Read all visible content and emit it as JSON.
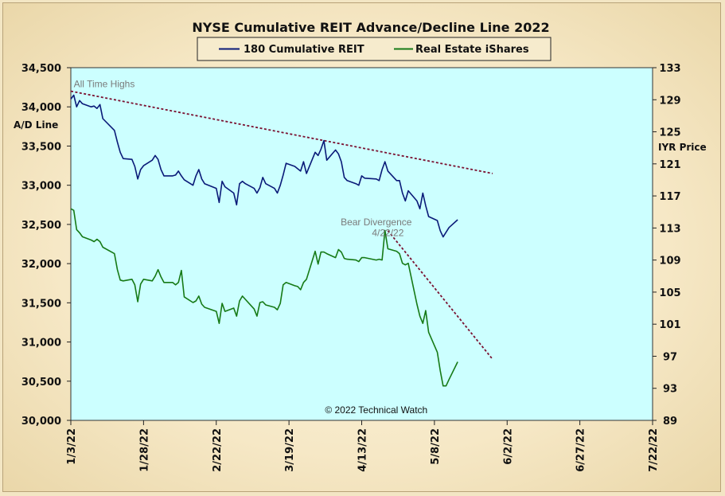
{
  "chart_data": {
    "type": "line",
    "title": "NYSE Cumulative  REIT Advance/Decline  Line 2022",
    "ylabel_left": "A/D Line",
    "ylabel_right": "IYR Price",
    "ylim_left": [
      30000,
      34500
    ],
    "ylim_right": [
      89,
      133
    ],
    "yticks_left": [
      "34,500",
      "34,000",
      "33,500",
      "33,000",
      "32,500",
      "32,000",
      "31,500",
      "31,000",
      "30,500",
      "30,000"
    ],
    "yticks_left_values": [
      34500,
      34000,
      33500,
      33000,
      32500,
      32000,
      31500,
      31000,
      30500,
      30000
    ],
    "yticks_right": [
      "133",
      "129",
      "125",
      "121",
      "117",
      "113",
      "109",
      "105",
      "101",
      "97",
      "93",
      "89"
    ],
    "yticks_right_values": [
      133,
      129,
      125,
      121,
      117,
      113,
      109,
      105,
      101,
      97,
      93,
      89
    ],
    "xticks": [
      "1/3/22",
      "1/28/22",
      "2/22/22",
      "3/19/22",
      "4/13/22",
      "5/8/22",
      "6/2/22",
      "6/27/22",
      "7/22/22"
    ],
    "x_start": "2022-01-03",
    "x_end": "2022-07-22",
    "grid": false,
    "legend_position": "top-center",
    "series": [
      {
        "name": "180 Cumulative REIT",
        "axis": "left",
        "color": "#0a1a78",
        "x": [
          "2022-01-03",
          "2022-01-04",
          "2022-01-05",
          "2022-01-06",
          "2022-01-07",
          "2022-01-10",
          "2022-01-11",
          "2022-01-12",
          "2022-01-13",
          "2022-01-14",
          "2022-01-18",
          "2022-01-19",
          "2022-01-20",
          "2022-01-21",
          "2022-01-24",
          "2022-01-25",
          "2022-01-26",
          "2022-01-27",
          "2022-01-28",
          "2022-01-31",
          "2022-02-01",
          "2022-02-02",
          "2022-02-03",
          "2022-02-04",
          "2022-02-07",
          "2022-02-08",
          "2022-02-09",
          "2022-02-10",
          "2022-02-11",
          "2022-02-14",
          "2022-02-15",
          "2022-02-16",
          "2022-02-17",
          "2022-02-18",
          "2022-02-22",
          "2022-02-23",
          "2022-02-24",
          "2022-02-25",
          "2022-02-28",
          "2022-03-01",
          "2022-03-02",
          "2022-03-03",
          "2022-03-04",
          "2022-03-07",
          "2022-03-08",
          "2022-03-09",
          "2022-03-10",
          "2022-03-11",
          "2022-03-14",
          "2022-03-15",
          "2022-03-16",
          "2022-03-17",
          "2022-03-18",
          "2022-03-21",
          "2022-03-22",
          "2022-03-23",
          "2022-03-24",
          "2022-03-25",
          "2022-03-28",
          "2022-03-29",
          "2022-03-30",
          "2022-03-31",
          "2022-04-01",
          "2022-04-04",
          "2022-04-05",
          "2022-04-06",
          "2022-04-07",
          "2022-04-08",
          "2022-04-11",
          "2022-04-12",
          "2022-04-13",
          "2022-04-14",
          "2022-04-18",
          "2022-04-19",
          "2022-04-20",
          "2022-04-21",
          "2022-04-22",
          "2022-04-25",
          "2022-04-26",
          "2022-04-27",
          "2022-04-28",
          "2022-04-29",
          "2022-05-02",
          "2022-05-03",
          "2022-05-04",
          "2022-05-05",
          "2022-05-06",
          "2022-05-09",
          "2022-05-10",
          "2022-05-11",
          "2022-05-12",
          "2022-05-13",
          "2022-05-16"
        ],
        "values": [
          34100,
          34150,
          34000,
          34080,
          34040,
          34000,
          34010,
          33980,
          34030,
          33850,
          33700,
          33550,
          33420,
          33340,
          33330,
          33240,
          33080,
          33200,
          33250,
          33320,
          33380,
          33330,
          33200,
          33120,
          33120,
          33130,
          33180,
          33120,
          33070,
          33000,
          33120,
          33200,
          33080,
          33020,
          32960,
          32780,
          33050,
          32980,
          32900,
          32750,
          33020,
          33050,
          33020,
          32960,
          32900,
          32970,
          33100,
          33020,
          32960,
          32900,
          33000,
          33130,
          33280,
          33240,
          33210,
          33180,
          33300,
          33150,
          33420,
          33380,
          33460,
          33570,
          33320,
          33450,
          33400,
          33300,
          33100,
          33060,
          33020,
          33000,
          33120,
          33090,
          33080,
          33060,
          33200,
          33300,
          33180,
          33060,
          33060,
          32900,
          32800,
          32930,
          32800,
          32700,
          32900,
          32740,
          32600,
          32550,
          32420,
          32340,
          32400,
          32460,
          32560
        ]
      },
      {
        "name": "Real Estate iShares",
        "axis": "right",
        "color": "#167a16",
        "x": [
          "2022-01-03",
          "2022-01-04",
          "2022-01-05",
          "2022-01-06",
          "2022-01-07",
          "2022-01-10",
          "2022-01-11",
          "2022-01-12",
          "2022-01-13",
          "2022-01-14",
          "2022-01-18",
          "2022-01-19",
          "2022-01-20",
          "2022-01-21",
          "2022-01-24",
          "2022-01-25",
          "2022-01-26",
          "2022-01-27",
          "2022-01-28",
          "2022-01-31",
          "2022-02-01",
          "2022-02-02",
          "2022-02-03",
          "2022-02-04",
          "2022-02-07",
          "2022-02-08",
          "2022-02-09",
          "2022-02-10",
          "2022-02-11",
          "2022-02-14",
          "2022-02-15",
          "2022-02-16",
          "2022-02-17",
          "2022-02-18",
          "2022-02-22",
          "2022-02-23",
          "2022-02-24",
          "2022-02-25",
          "2022-02-28",
          "2022-03-01",
          "2022-03-02",
          "2022-03-03",
          "2022-03-04",
          "2022-03-07",
          "2022-03-08",
          "2022-03-09",
          "2022-03-10",
          "2022-03-11",
          "2022-03-14",
          "2022-03-15",
          "2022-03-16",
          "2022-03-17",
          "2022-03-18",
          "2022-03-21",
          "2022-03-22",
          "2022-03-23",
          "2022-03-24",
          "2022-03-25",
          "2022-03-28",
          "2022-03-29",
          "2022-03-30",
          "2022-03-31",
          "2022-04-01",
          "2022-04-04",
          "2022-04-05",
          "2022-04-06",
          "2022-04-07",
          "2022-04-08",
          "2022-04-11",
          "2022-04-12",
          "2022-04-13",
          "2022-04-14",
          "2022-04-18",
          "2022-04-19",
          "2022-04-20",
          "2022-04-21",
          "2022-04-22",
          "2022-04-25",
          "2022-04-26",
          "2022-04-27",
          "2022-04-28",
          "2022-04-29",
          "2022-05-02",
          "2022-05-03",
          "2022-05-04",
          "2022-05-05",
          "2022-05-06",
          "2022-05-09",
          "2022-05-10",
          "2022-05-11",
          "2022-05-12",
          "2022-05-13",
          "2022-05-16"
        ],
        "values": [
          115.4,
          115.2,
          112.8,
          112.4,
          111.9,
          111.5,
          111.3,
          111.6,
          111.3,
          110.6,
          109.8,
          107.8,
          106.5,
          106.4,
          106.6,
          105.9,
          103.8,
          106.0,
          106.6,
          106.4,
          107.0,
          107.8,
          106.9,
          106.2,
          106.2,
          105.9,
          106.2,
          107.7,
          104.4,
          103.7,
          103.9,
          104.5,
          103.5,
          103.1,
          102.6,
          101.1,
          103.6,
          102.6,
          103.0,
          102.0,
          103.9,
          104.5,
          104.1,
          102.9,
          102.0,
          103.7,
          103.8,
          103.4,
          103.1,
          102.8,
          103.6,
          105.9,
          106.2,
          105.8,
          105.7,
          105.3,
          106.2,
          106.6,
          110.1,
          108.5,
          110.0,
          110.0,
          109.8,
          109.3,
          110.3,
          110.0,
          109.2,
          109.1,
          109.0,
          108.8,
          109.3,
          109.3,
          109.0,
          109.1,
          109.0,
          112.7,
          110.4,
          110.1,
          109.8,
          108.6,
          108.4,
          108.6,
          103.5,
          102.0,
          101.1,
          102.7,
          100.0,
          97.5,
          95.2,
          93.3,
          93.3,
          94.1,
          96.3
        ]
      }
    ],
    "trendlines": [
      {
        "axis": "left",
        "color": "#7a1030",
        "style": "dashed",
        "x": [
          "2022-01-03",
          "2022-05-28"
        ],
        "values": [
          34200,
          33150
        ]
      },
      {
        "axis": "left",
        "color": "#7a1030",
        "style": "dashed",
        "x": [
          "2022-04-22",
          "2022-05-28"
        ],
        "values": [
          32420,
          30780
        ]
      }
    ],
    "annotations": [
      {
        "text": "All Time Highs",
        "x": "2022-01-04",
        "value": 34250
      },
      {
        "text": "Bear Divergence",
        "x": "2022-04-18",
        "value": 32490
      },
      {
        "text": "4/22/22",
        "x": "2022-04-22",
        "value": 32350
      },
      {
        "text": "© 2022 Technical  Watch",
        "x": "2022-04-18",
        "value": 30090
      }
    ]
  }
}
